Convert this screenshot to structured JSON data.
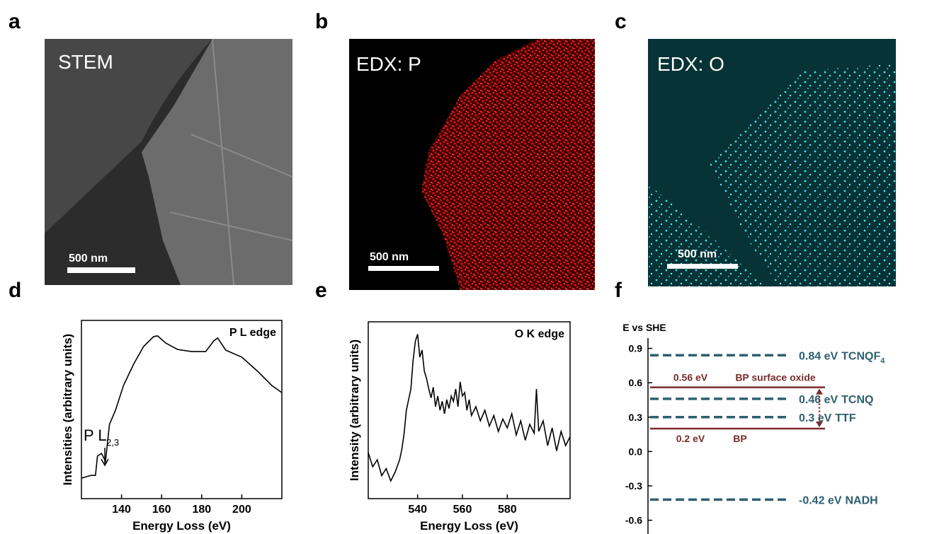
{
  "panels": [
    {
      "panel_label": "a",
      "label": "STEM",
      "scale_bar_label": "500 nm"
    },
    {
      "panel_label": "b",
      "label": "EDX: P",
      "scale_bar_label": "500 nm"
    },
    {
      "panel_label": "c",
      "label": "EDX: O",
      "scale_bar_label": "500 nm"
    }
  ],
  "chart_data": [
    {
      "type": "line",
      "panel_label": "d",
      "annotation": "P L edge",
      "edge_label": "P L",
      "edge_label_sub": "2,3",
      "x_label": "Energy Loss (eV)",
      "y_label": "Intensities (arbitrary units)",
      "color": "#000000",
      "xlim": [
        120,
        220
      ],
      "xticks": [
        140,
        160,
        180,
        200
      ],
      "ylim": [
        0,
        1
      ],
      "x": [
        120,
        125,
        127,
        128,
        130,
        132,
        134,
        137,
        141,
        146,
        151,
        156,
        158,
        162,
        168,
        175,
        182,
        186,
        188,
        192,
        200,
        208,
        215,
        220
      ],
      "values": [
        0.115,
        0.131,
        0.13,
        0.238,
        0.254,
        0.21,
        0.417,
        0.496,
        0.635,
        0.754,
        0.853,
        0.909,
        0.913,
        0.873,
        0.837,
        0.825,
        0.825,
        0.885,
        0.901,
        0.833,
        0.794,
        0.714,
        0.635,
        0.595
      ]
    },
    {
      "type": "line",
      "panel_label": "e",
      "annotation": "O K edge",
      "x_label": "Energy Loss (eV)",
      "y_label": "Intensity (arbitrary units)",
      "color": "#000000",
      "xlim": [
        518,
        608
      ],
      "xticks": [
        540,
        560,
        580
      ],
      "ylim": [
        0,
        1
      ],
      "x": [
        518,
        520,
        522,
        524,
        526,
        528,
        530,
        532,
        533,
        534,
        535,
        536,
        537,
        538,
        539,
        540,
        541,
        542,
        543,
        544,
        545,
        546,
        547,
        548,
        549,
        550,
        551,
        552,
        553,
        554,
        555,
        556,
        557,
        558,
        559,
        560,
        561,
        562,
        563,
        564,
        566,
        568,
        570,
        572,
        574,
        576,
        578,
        580,
        582,
        584,
        586,
        588,
        590,
        592,
        593,
        594,
        596,
        598,
        600,
        602,
        604,
        606,
        608
      ],
      "values": [
        0.26,
        0.18,
        0.22,
        0.13,
        0.17,
        0.1,
        0.15,
        0.22,
        0.28,
        0.37,
        0.5,
        0.56,
        0.62,
        0.78,
        0.89,
        0.93,
        0.8,
        0.84,
        0.72,
        0.68,
        0.62,
        0.57,
        0.63,
        0.52,
        0.58,
        0.5,
        0.55,
        0.48,
        0.56,
        0.51,
        0.58,
        0.55,
        0.62,
        0.52,
        0.66,
        0.58,
        0.6,
        0.5,
        0.56,
        0.47,
        0.52,
        0.44,
        0.5,
        0.41,
        0.47,
        0.38,
        0.45,
        0.4,
        0.48,
        0.36,
        0.44,
        0.33,
        0.42,
        0.37,
        0.62,
        0.38,
        0.44,
        0.3,
        0.4,
        0.27,
        0.38,
        0.3,
        0.35
      ]
    },
    {
      "type": "level",
      "panel_label": "f",
      "y_label": "E vs SHE",
      "ylim": [
        -0.72,
        0.99
      ],
      "yticks": [
        0.9,
        0.6,
        0.3,
        {
          "value": 0,
          "label": "0.0"
        },
        -0.3,
        -0.6
      ],
      "levels": [
        {
          "value": 0.84,
          "value_label": "0.84 eV",
          "name": "TCNQF",
          "name_sub": "4",
          "style": "dashed",
          "color": "#2f5f6e"
        },
        {
          "value": 0.56,
          "value_label": "0.56 eV",
          "name": "BP surface oxide",
          "style": "solid",
          "color": "#7a2b2b"
        },
        {
          "value": 0.46,
          "value_label": "0.46 eV",
          "name": "TCNQ",
          "style": "dashed",
          "color": "#2f5f6e"
        },
        {
          "value": 0.3,
          "value_label": "0.3 eV",
          "name": "TTF",
          "style": "dashed",
          "color": "#2f5f6e"
        },
        {
          "value": 0.2,
          "value_label": "0.2 eV",
          "name": "BP",
          "style": "solid",
          "color": "#7a2b2b"
        },
        {
          "value": -0.42,
          "value_label": "-0.42 eV",
          "name": "NADH",
          "style": "dashed",
          "color": "#2f5f6e"
        }
      ]
    }
  ]
}
